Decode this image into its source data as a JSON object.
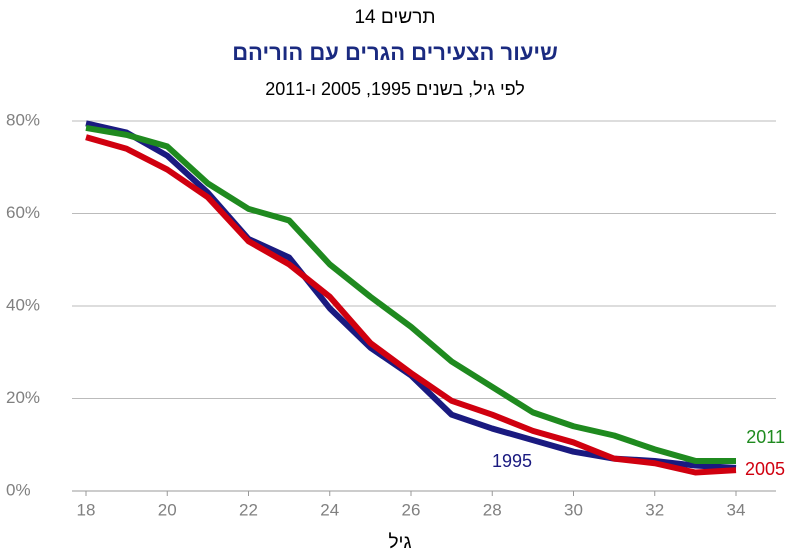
{
  "chart_data": {
    "type": "line",
    "chart_label": "תרשים 14",
    "title": "שיעור הצעירים הגרים עם הוריהם",
    "subtitle": "לפי גיל, בשנים 1995, 2005 ו-2011",
    "x_label": "גיל",
    "x": [
      18,
      19,
      20,
      21,
      22,
      23,
      24,
      25,
      26,
      27,
      28,
      29,
      30,
      31,
      32,
      33,
      34
    ],
    "xlim": [
      18,
      34
    ],
    "xticks": [
      18,
      20,
      22,
      24,
      26,
      28,
      30,
      32,
      34
    ],
    "ylim": [
      0,
      80
    ],
    "yticks": [
      {
        "value": 0,
        "label": "0%"
      },
      {
        "value": 20,
        "label": "20%"
      },
      {
        "value": 40,
        "label": "40%"
      },
      {
        "value": 60,
        "label": "60%"
      },
      {
        "value": 80,
        "label": "80%"
      }
    ],
    "grid": true,
    "series": [
      {
        "name": "1995",
        "color": "#1a1a80",
        "values": [
          79.5,
          77.5,
          72.5,
          64.5,
          54.5,
          50.5,
          39.5,
          31,
          25,
          16.5,
          13.5,
          11,
          8.5,
          7,
          6.5,
          5.5,
          5
        ]
      },
      {
        "name": "2005",
        "color": "#d0000f",
        "values": [
          76.5,
          74,
          69.5,
          63.5,
          54,
          49,
          42,
          32,
          25.5,
          19.5,
          16.5,
          13,
          10.5,
          7,
          6,
          4,
          4.5
        ]
      },
      {
        "name": "2011",
        "color": "#1f8a1f",
        "values": [
          78.5,
          77,
          74.5,
          66.5,
          61,
          58.5,
          49,
          42,
          35.5,
          28,
          22.5,
          17,
          14,
          12,
          9,
          6.5,
          6.5
        ]
      }
    ]
  }
}
